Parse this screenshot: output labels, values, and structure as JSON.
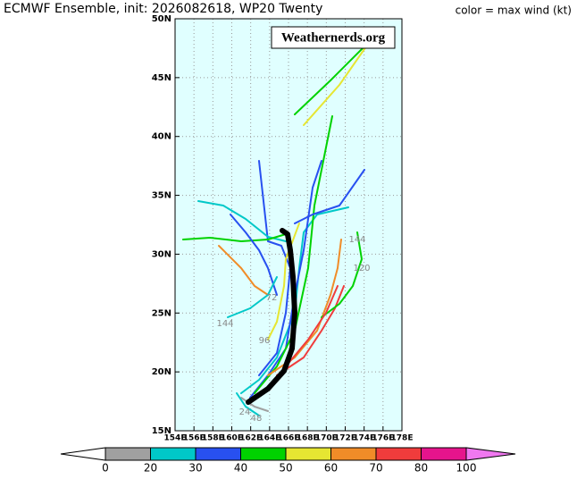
{
  "chart_data": {
    "type": "track-map",
    "title": "ECMWF Ensemble, init: 2026082618, WP20 Twenty",
    "subtitle": "color = max wind (kt)",
    "watermark": "Weathernerds.org",
    "xlim": [
      154,
      178
    ],
    "ylim": [
      15,
      50
    ],
    "xticks": [
      {
        "value": 154,
        "label": "154E"
      },
      {
        "value": 156,
        "label": "156E"
      },
      {
        "value": 158,
        "label": "158E"
      },
      {
        "value": 160,
        "label": "160E"
      },
      {
        "value": 162,
        "label": "162E"
      },
      {
        "value": 164,
        "label": "164E"
      },
      {
        "value": 166,
        "label": "166E"
      },
      {
        "value": 168,
        "label": "168E"
      },
      {
        "value": 170,
        "label": "170E"
      },
      {
        "value": 172,
        "label": "172E"
      },
      {
        "value": 174,
        "label": "174E"
      },
      {
        "value": 176,
        "label": "176E"
      },
      {
        "value": 178,
        "label": "178E"
      }
    ],
    "yticks": [
      {
        "value": 15,
        "label": "15N"
      },
      {
        "value": 20,
        "label": "20N"
      },
      {
        "value": 25,
        "label": "25N"
      },
      {
        "value": 30,
        "label": "30N"
      },
      {
        "value": 35,
        "label": "35N"
      },
      {
        "value": 40,
        "label": "40N"
      },
      {
        "value": 45,
        "label": "45N"
      },
      {
        "value": 50,
        "label": "50N"
      }
    ],
    "grid": true,
    "annotations": [
      "144",
      "120",
      "144",
      "96",
      "72",
      "24",
      "48"
    ],
    "colorbar": {
      "ticks": [
        0,
        20,
        30,
        40,
        50,
        60,
        70,
        80,
        100
      ],
      "colors": [
        "#a0a0a0",
        "#00c8c8",
        "#2850f0",
        "#00d200",
        "#e6e632",
        "#f08c28",
        "#f03c3c",
        "#e6148c"
      ],
      "under": "#ffffff",
      "over": "#f078f0"
    }
  }
}
